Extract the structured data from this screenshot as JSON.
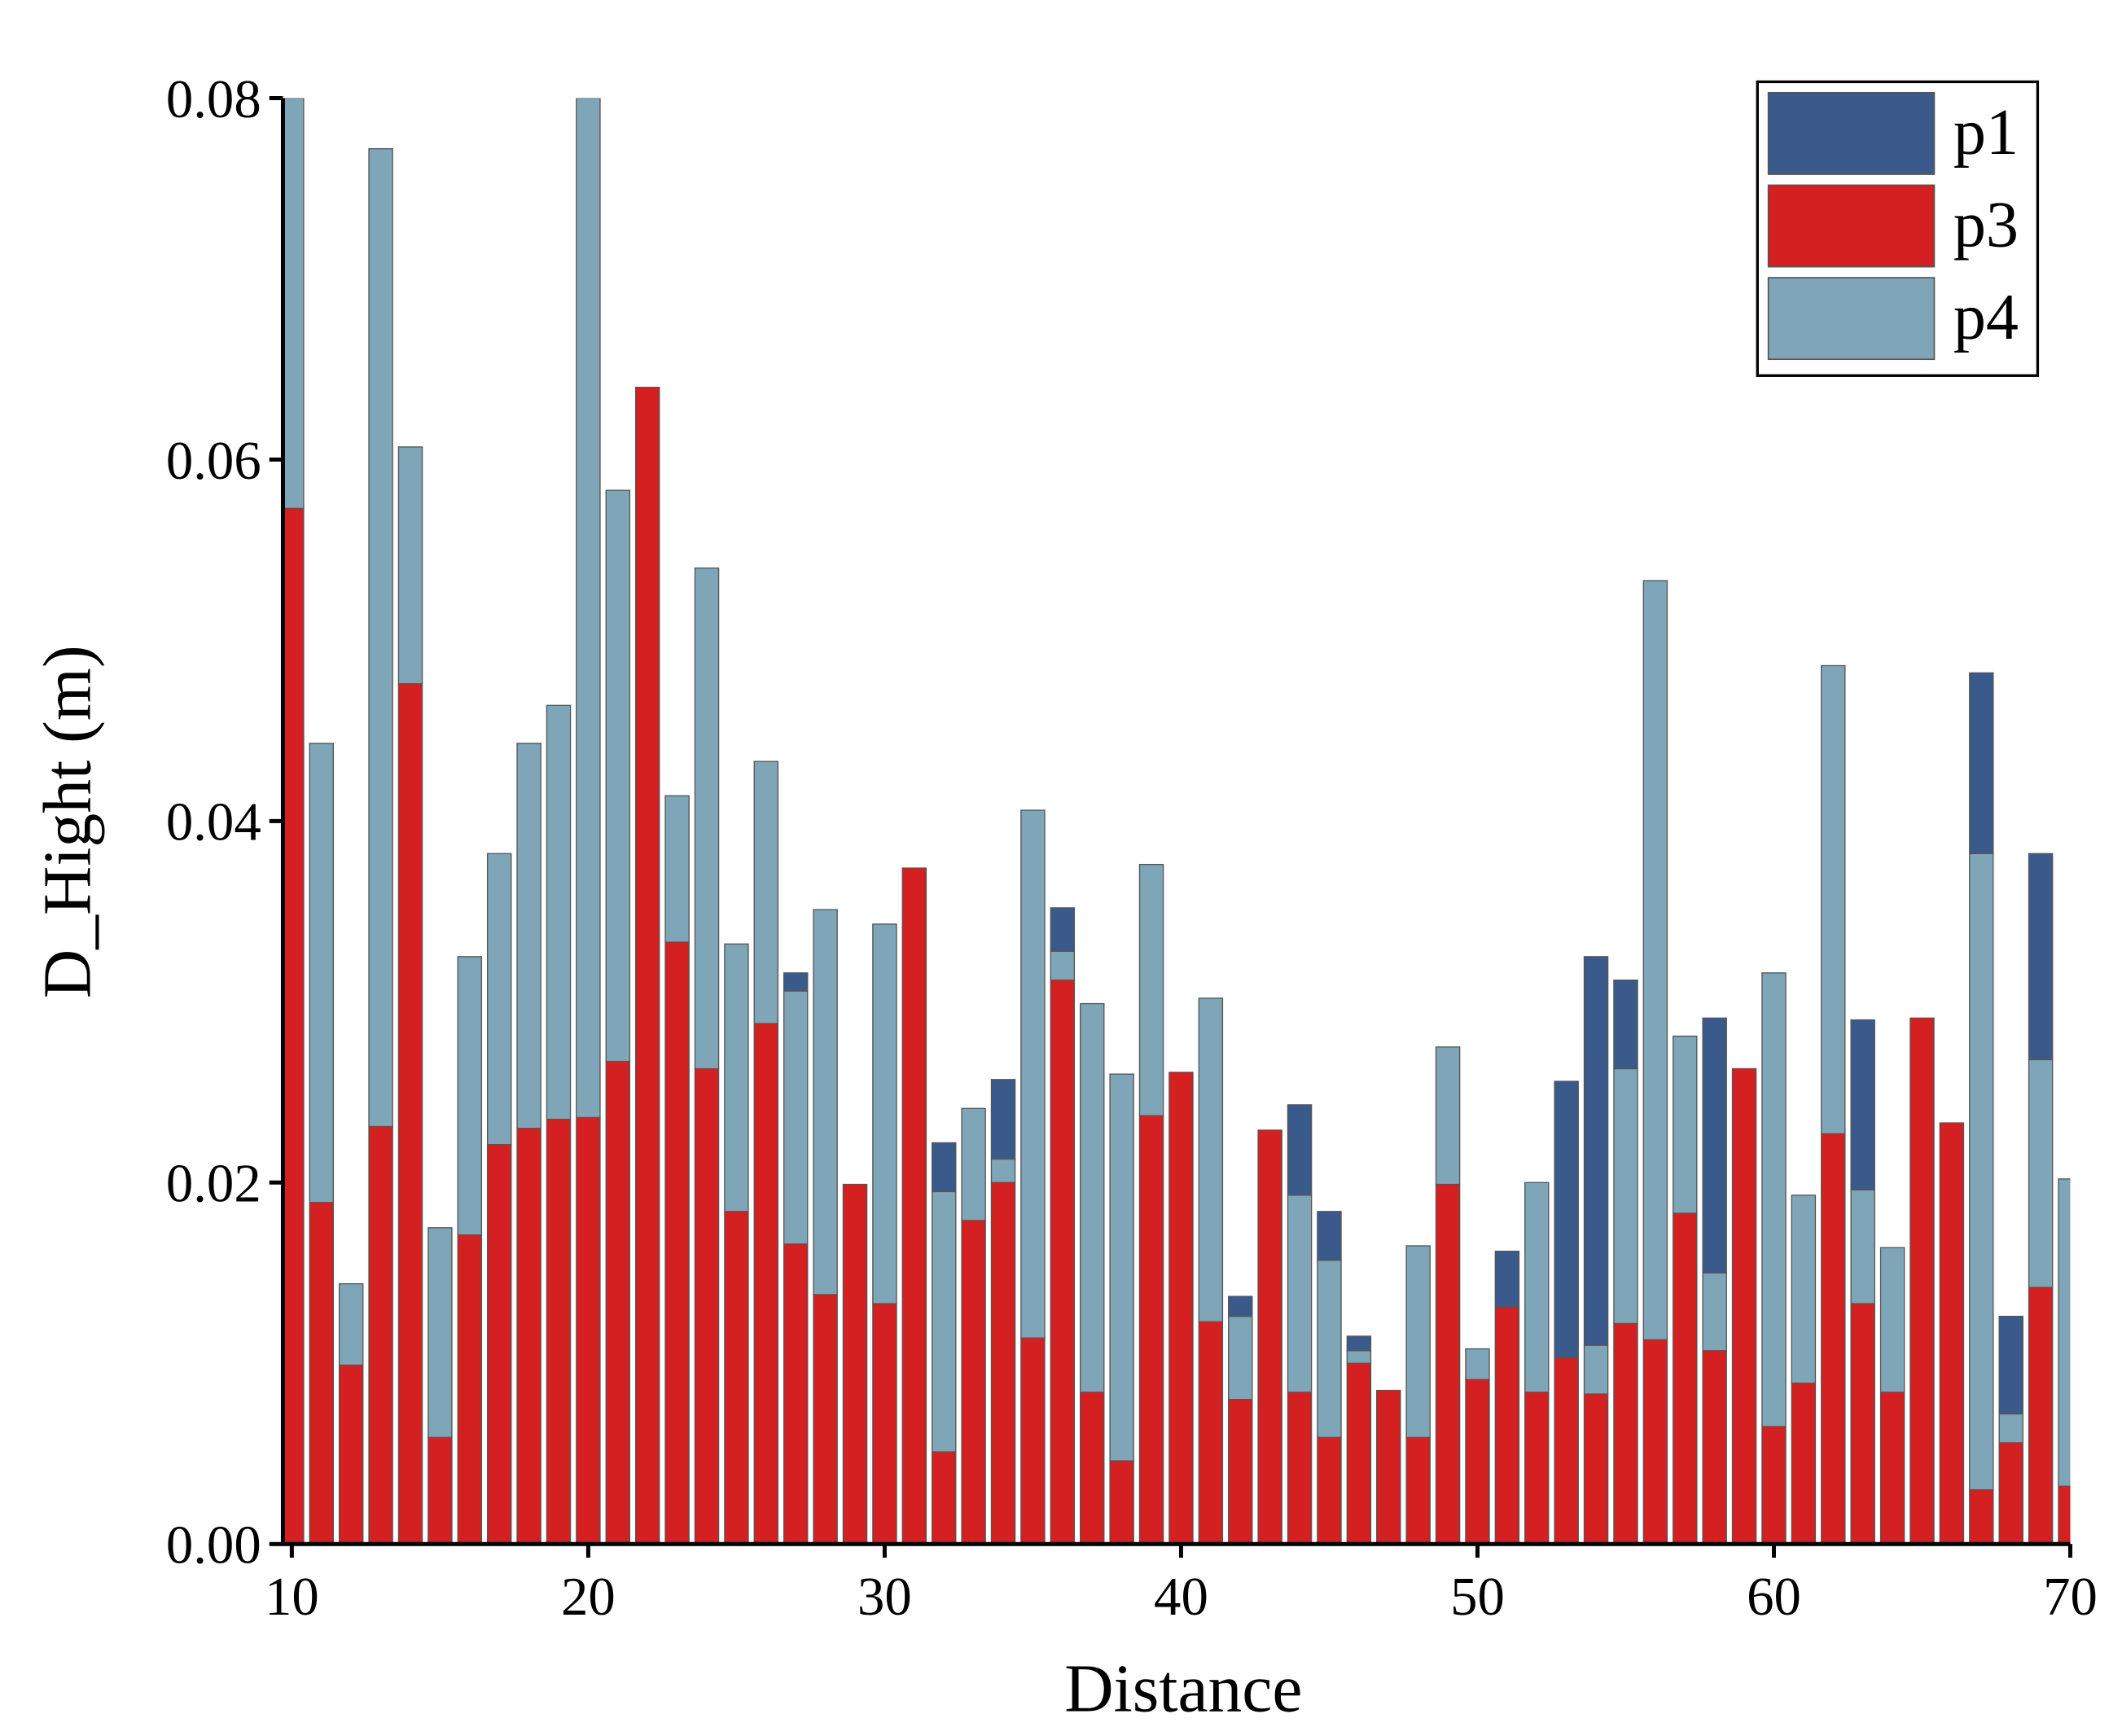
{
  "chart_data": {
    "type": "stacked_bar",
    "xlabel": "Distance",
    "ylabel": "D_Hight (m)",
    "x": [
      10,
      11,
      12,
      13,
      14,
      15,
      16,
      17,
      18,
      19,
      20,
      21,
      22,
      23,
      24,
      25,
      26,
      27,
      28,
      29,
      30,
      31,
      32,
      33,
      34,
      35,
      36,
      37,
      38,
      39,
      40,
      41,
      42,
      43,
      44,
      45,
      46,
      47,
      48,
      49,
      50,
      51,
      52,
      53,
      54,
      55,
      56,
      57,
      58,
      59,
      60,
      61,
      62,
      63,
      64,
      65,
      66,
      67,
      68,
      69,
      70
    ],
    "series": [
      {
        "name": "p1",
        "color": "#3a5a8c",
        "values": [
          0,
          0,
          0,
          0,
          0,
          0,
          0,
          0,
          0,
          0,
          0,
          0,
          0,
          0,
          0,
          0,
          0,
          0.001,
          0,
          0,
          0,
          0,
          0.0027,
          0,
          0.0044,
          0,
          0.0024,
          0,
          0,
          0,
          0,
          0,
          0.0011,
          0,
          0.005,
          0.0027,
          0.0008,
          0,
          0,
          0,
          0,
          0.0031,
          0,
          0.0153,
          0.0215,
          0.0049,
          0,
          0,
          0.0141,
          0,
          0,
          0,
          0,
          0.0094,
          0,
          0,
          0,
          0.01,
          0.0054,
          0.0114,
          0
        ]
      },
      {
        "name": "p3",
        "color": "#d42020",
        "values": [
          0.0573,
          0.0189,
          0.0099,
          0.0231,
          0.0476,
          0.0059,
          0.0171,
          0.0221,
          0.023,
          0.0235,
          0.0236,
          0.0267,
          0.064,
          0.0333,
          0.0263,
          0.0184,
          0.0288,
          0.0166,
          0.0138,
          0.0199,
          0.0133,
          0.0374,
          0.0051,
          0.0179,
          0.02,
          0.0114,
          0.0312,
          0.0084,
          0.0046,
          0.0237,
          0.0261,
          0.0123,
          0.008,
          0.0229,
          0.0084,
          0.0059,
          0.01,
          0.0085,
          0.0059,
          0.0199,
          0.0091,
          0.0131,
          0.0084,
          0.0103,
          0.0083,
          0.0122,
          0.0113,
          0.0183,
          0.0107,
          0.0263,
          0.0065,
          0.0089,
          0.0227,
          0.0133,
          0.0084,
          0.0291,
          0.0233,
          0.003,
          0.0056,
          0.0142,
          0.0032
        ]
      },
      {
        "name": "p4",
        "color": "#7ea6b8",
        "values": [
          0.0227,
          0.0254,
          0.0045,
          0.0541,
          0.0131,
          0.0116,
          0.0154,
          0.0161,
          0.0213,
          0.0229,
          0.0564,
          0.0316,
          0,
          0.0081,
          0.0277,
          0.0148,
          0.0145,
          0.014,
          0.0213,
          0,
          0.021,
          0,
          0.0144,
          0.0062,
          0.0013,
          0.0292,
          0.0016,
          0.0215,
          0.0214,
          0.0139,
          0,
          0.0179,
          0.0046,
          0,
          0.0109,
          0.0098,
          0.0007,
          0,
          0.0106,
          0.0076,
          0.0017,
          0,
          0.0116,
          0,
          0.0027,
          0.0141,
          0.042,
          0.0098,
          0.0043,
          0,
          0.0251,
          0.0104,
          0.0259,
          0.0063,
          0.008,
          0,
          0,
          0.0352,
          0.0016,
          0.0126,
          0.017
        ]
      }
    ],
    "xlim": [
      9.7,
      70
    ],
    "xticks": [
      10,
      20,
      30,
      40,
      50,
      60,
      70
    ],
    "ylim": [
      0,
      0.08
    ],
    "yticks": [
      {
        "value": 0,
        "label": "0.00"
      },
      0.02,
      0.04,
      0.06,
      0.08
    ],
    "legend": "upper right"
  }
}
